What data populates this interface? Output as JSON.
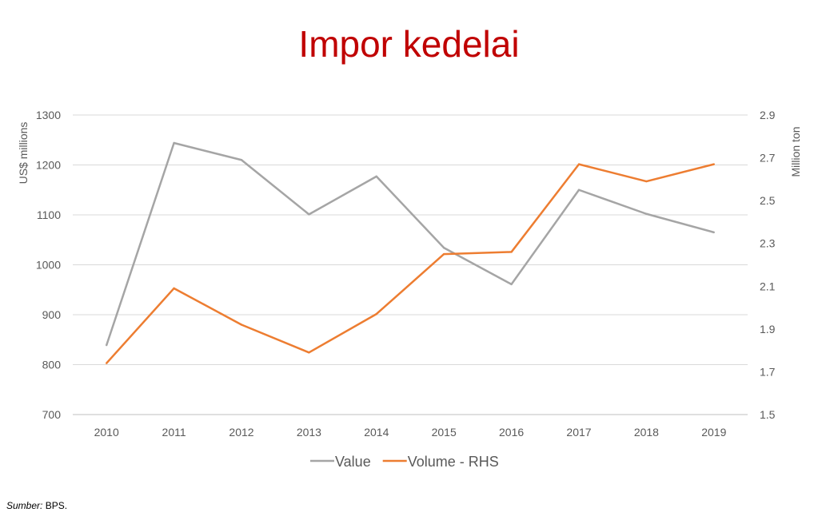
{
  "chart_data": {
    "type": "line",
    "title": "Impor kedelai",
    "categories": [
      "2010",
      "2011",
      "2012",
      "2013",
      "2014",
      "2015",
      "2016",
      "2017",
      "2018",
      "2019"
    ],
    "y_left": {
      "label": "US$ millions",
      "range": [
        700,
        1300
      ],
      "ticks": [
        "700",
        "800",
        "900",
        "1000",
        "1100",
        "1200",
        "1300"
      ]
    },
    "y_right": {
      "label": "Million ton",
      "range": [
        1.5,
        2.9
      ],
      "ticks": [
        "1.5",
        "1.7",
        "1.9",
        "2.1",
        "2.3",
        "2.5",
        "2.7",
        "2.9"
      ]
    },
    "grid": true,
    "legend_position": "bottom",
    "series": [
      {
        "name": "Value",
        "axis": "left",
        "color": "#a5a5a5",
        "values": [
          839,
          1244,
          1210,
          1101,
          1177,
          1034,
          961,
          1150,
          1102,
          1065
        ]
      },
      {
        "name": "Volume - RHS",
        "axis": "right",
        "color": "#ed7d31",
        "values": [
          1.74,
          2.09,
          1.92,
          1.79,
          1.97,
          2.25,
          2.26,
          2.67,
          2.59,
          2.67
        ]
      }
    ]
  },
  "footnote": {
    "label": "Sumber:",
    "text": " BPS."
  }
}
